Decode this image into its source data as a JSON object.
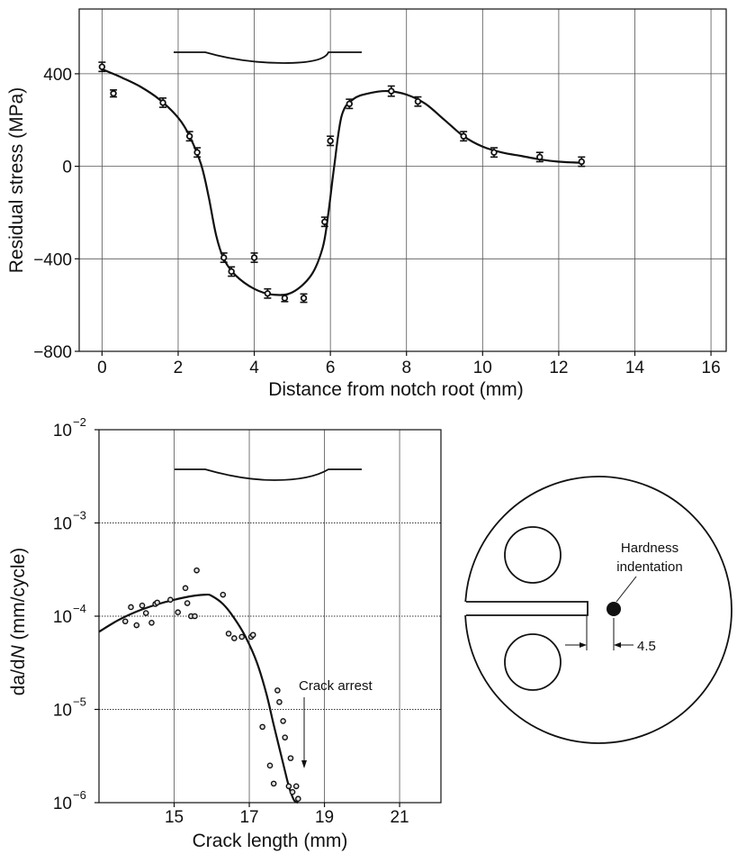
{
  "chart_data": [
    {
      "type": "line",
      "xlabel": "Distance from notch root (mm)",
      "ylabel": "Residual stress (MPa)",
      "xlim": [
        -0.6,
        16.4
      ],
      "ylim": [
        -800,
        680
      ],
      "x_ticks": [
        0,
        2,
        4,
        6,
        8,
        10,
        12,
        14,
        16
      ],
      "x_tick_labels": [
        "0",
        "2",
        "4",
        "6",
        "8",
        "10",
        "12",
        "14",
        "16"
      ],
      "y_ticks": [
        -800,
        -400,
        0,
        400
      ],
      "y_tick_labels": [
        "−800",
        "−400",
        "0",
        "400"
      ],
      "grid": true,
      "series": [
        {
          "kind": "markers-with-error-bars",
          "x": [
            0.0,
            0.3,
            1.6,
            2.3,
            2.5,
            3.2,
            3.4,
            4.0,
            4.35,
            4.8,
            5.3,
            5.85,
            6.0,
            6.5,
            7.6,
            8.3,
            9.5,
            10.3,
            11.5,
            12.6
          ],
          "y": [
            430,
            315,
            275,
            130,
            60,
            -395,
            -455,
            -395,
            -550,
            -570,
            -570,
            -240,
            110,
            270,
            325,
            280,
            130,
            60,
            40,
            20
          ],
          "error": [
            20,
            15,
            20,
            20,
            20,
            20,
            20,
            20,
            20,
            15,
            18,
            20,
            20,
            20,
            22,
            20,
            20,
            20,
            20,
            20
          ]
        },
        {
          "kind": "fitted-curve",
          "x": [
            0.0,
            0.5,
            1.0,
            1.5,
            2.0,
            2.3,
            2.6,
            2.8,
            3.0,
            3.2,
            3.5,
            4.0,
            4.5,
            5.0,
            5.5,
            5.8,
            5.95,
            6.1,
            6.3,
            6.6,
            7.0,
            7.5,
            8.0,
            8.5,
            9.0,
            9.5,
            10.0,
            10.5,
            11.0,
            11.5,
            12.0,
            12.6
          ],
          "y": [
            420,
            385,
            345,
            290,
            210,
            130,
            10,
            -130,
            -300,
            -400,
            -470,
            -530,
            -555,
            -545,
            -470,
            -350,
            -200,
            0,
            220,
            290,
            315,
            325,
            310,
            270,
            200,
            130,
            85,
            60,
            45,
            30,
            20,
            15
          ]
        }
      ]
    },
    {
      "type": "scatter",
      "xlabel_parts": [
        "Crack length (mm)"
      ],
      "ylabel_parts": [
        "da/d",
        "N",
        " (mm/cycle)"
      ],
      "xlim": [
        13,
        22.1
      ],
      "ylim_log10": [
        -6,
        -2
      ],
      "y_scale": "log",
      "x_ticks": [
        15,
        17,
        19,
        21
      ],
      "x_tick_labels": [
        "15",
        "17",
        "19",
        "21"
      ],
      "y_ticks_log10": [
        -6,
        -5,
        -4,
        -3,
        -2
      ],
      "y_tick_labels": [
        "10",
        "10",
        "10",
        "10",
        "10"
      ],
      "y_tick_exponents": [
        "−6",
        "−5",
        "−4",
        "−3",
        "−2"
      ],
      "grid": true,
      "series": [
        {
          "kind": "points",
          "x": [
            13.7,
            13.85,
            14.0,
            14.15,
            14.25,
            14.4,
            14.5,
            14.55,
            14.9,
            15.1,
            15.3,
            15.35,
            15.45,
            15.55,
            15.6,
            16.3,
            16.45,
            16.6,
            16.8,
            17.05,
            17.1,
            17.35,
            17.55,
            17.65,
            17.75,
            17.8,
            17.9,
            17.95,
            18.05,
            18.1,
            18.15,
            18.25,
            18.3
          ],
          "y": [
            8.8e-05,
            0.000125,
            8e-05,
            0.00013,
            0.000108,
            8.5e-05,
            0.000135,
            0.00014,
            0.00015,
            0.00011,
            0.0002,
            0.000138,
            0.0001,
            0.0001,
            0.00031,
            0.00017,
            6.5e-05,
            5.8e-05,
            6e-05,
            6e-05,
            6.3e-05,
            6.5e-06,
            2.5e-06,
            1.6e-06,
            1.6e-05,
            1.2e-05,
            7.5e-06,
            5e-06,
            1.5e-06,
            3e-06,
            1.3e-06,
            1.5e-06,
            1.1e-06
          ]
        },
        {
          "kind": "fitted-curve",
          "x": [
            13.0,
            13.5,
            14.0,
            14.5,
            15.0,
            15.5,
            15.85,
            16.0,
            16.3,
            16.6,
            16.9,
            17.2,
            17.45,
            17.65,
            17.85,
            18.0,
            18.1,
            18.2,
            18.3
          ],
          "y": [
            6.8e-05,
            9e-05,
            0.000112,
            0.000132,
            0.00015,
            0.000165,
            0.00017,
            0.000165,
            0.000135,
            9.5e-05,
            6e-05,
            3.2e-05,
            1.5e-05,
            6.8e-06,
            3.2e-06,
            1.8e-06,
            1.3e-06,
            1.05e-06,
            1e-06
          ]
        }
      ],
      "annotations": {
        "crack_arrest": "Crack arrest"
      }
    }
  ],
  "specimen": {
    "hardness_label_line1": "Hardness",
    "hardness_label_line2": "indentation",
    "dimension_label": "4.5"
  }
}
